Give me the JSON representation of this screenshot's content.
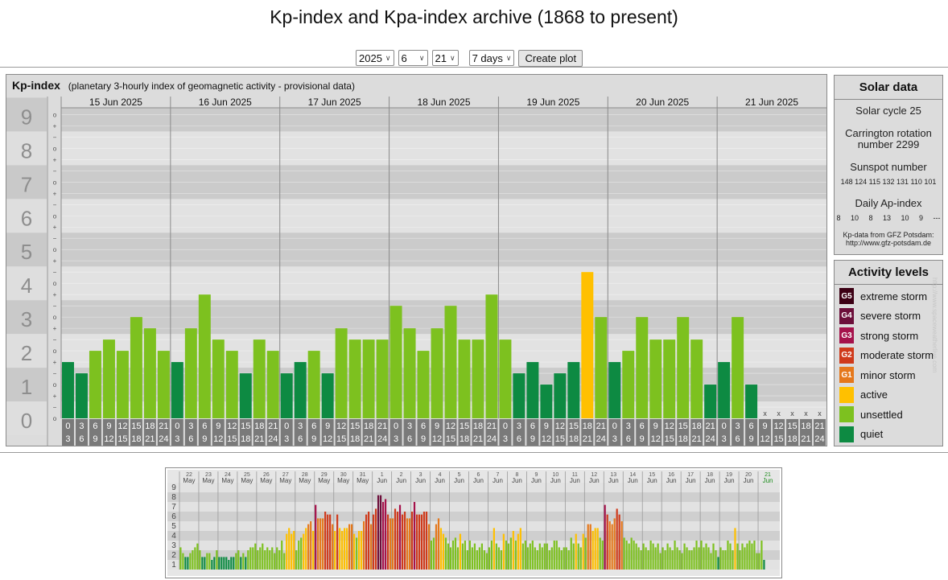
{
  "page_title": "Kp-index and Kpa-index archive (1868 to present)",
  "controls": {
    "year": "2025",
    "month": "6",
    "day": "21",
    "range": "7 days",
    "create_label": "Create plot"
  },
  "main_chart": {
    "title": "Kp-index",
    "subtitle": "(planetary 3-hourly index of geomagnetic activity - provisional data)",
    "y_ticks": [
      "0",
      "1",
      "2",
      "3",
      "4",
      "5",
      "6",
      "7",
      "8",
      "9"
    ],
    "minor_marks": [
      "o",
      "+",
      "−"
    ],
    "no_data_mark": "x"
  },
  "chart_data": [
    {
      "type": "bar",
      "title": "Kp-index",
      "ylim": [
        0,
        9
      ],
      "days": [
        "15 Jun 2025",
        "16 Jun 2025",
        "17 Jun 2025",
        "18 Jun 2025",
        "19 Jun 2025",
        "20 Jun 2025",
        "21 Jun 2025"
      ],
      "interval_start": [
        "0",
        "3",
        "6",
        "9",
        "12",
        "15",
        "18",
        "21"
      ],
      "interval_end": [
        "3",
        "6",
        "9",
        "12",
        "15",
        "18",
        "21",
        "24"
      ],
      "values": [
        1.667,
        1.333,
        2.0,
        2.333,
        2.0,
        3.0,
        2.667,
        2.0,
        1.667,
        2.667,
        3.667,
        2.333,
        2.0,
        1.333,
        2.333,
        2.0,
        1.333,
        1.667,
        2.0,
        1.333,
        2.667,
        2.333,
        2.333,
        2.333,
        3.333,
        2.667,
        2.0,
        2.667,
        3.333,
        2.333,
        2.333,
        3.667,
        2.333,
        1.333,
        1.667,
        1.0,
        1.333,
        1.667,
        4.333,
        3.0,
        1.667,
        2.0,
        3.0,
        2.333,
        2.333,
        3.0,
        2.333,
        1.0,
        1.667,
        3.0,
        1.0,
        null,
        null,
        null,
        null,
        null
      ]
    },
    {
      "type": "bar",
      "title": "",
      "ylim": [
        0,
        9
      ],
      "y_ticks": [
        "1",
        "2",
        "3",
        "4",
        "5",
        "6",
        "7",
        "8",
        "9"
      ],
      "days": [
        "22",
        "23",
        "24",
        "25",
        "26",
        "27",
        "28",
        "29",
        "30",
        "31",
        "1",
        "2",
        "3",
        "4",
        "5",
        "6",
        "7",
        "8",
        "9",
        "10",
        "11",
        "12",
        "13",
        "14",
        "15",
        "16",
        "17",
        "18",
        "19",
        "20",
        "21"
      ],
      "months": [
        "May",
        "May",
        "May",
        "May",
        "May",
        "May",
        "May",
        "May",
        "May",
        "May",
        "Jun",
        "Jun",
        "Jun",
        "Jun",
        "Jun",
        "Jun",
        "Jun",
        "Jun",
        "Jun",
        "Jun",
        "Jun",
        "Jun",
        "Jun",
        "Jun",
        "Jun",
        "Jun",
        "Jun",
        "Jun",
        "Jun",
        "Jun",
        "Jun"
      ],
      "values": [
        2.3,
        1.7,
        1.3,
        1.3,
        1.7,
        2.0,
        2.3,
        2.7,
        2.0,
        1.3,
        1.3,
        1.7,
        1.7,
        1.0,
        1.3,
        2.0,
        1.3,
        1.3,
        1.3,
        1.3,
        1.0,
        1.3,
        1.3,
        1.7,
        2.0,
        1.3,
        1.7,
        1.3,
        2.0,
        2.3,
        2.3,
        2.7,
        2.0,
        2.3,
        2.7,
        2.0,
        2.3,
        2.0,
        2.3,
        1.7,
        2.3,
        2.0,
        3.0,
        1.7,
        3.7,
        4.3,
        3.7,
        4.0,
        2.0,
        3.0,
        3.3,
        3.7,
        4.3,
        4.7,
        5.0,
        4.0,
        6.7,
        5.3,
        5.3,
        5.3,
        6.0,
        5.7,
        5.7,
        4.7,
        4.0,
        5.7,
        4.3,
        4.0,
        4.3,
        4.3,
        4.7,
        4.7,
        3.7,
        3.3,
        4.0,
        4.0,
        5.0,
        5.7,
        6.0,
        4.7,
        5.7,
        6.3,
        7.7,
        7.7,
        7.0,
        7.3,
        5.7,
        5.3,
        5.3,
        6.3,
        6.0,
        6.7,
        5.7,
        6.0,
        5.3,
        5.3,
        6.0,
        7.0,
        5.7,
        5.7,
        5.7,
        6.0,
        6.0,
        4.7,
        3.0,
        3.3,
        4.7,
        5.3,
        4.3,
        3.7,
        3.3,
        2.7,
        2.3,
        3.0,
        3.3,
        2.3,
        3.7,
        2.7,
        3.0,
        2.0,
        3.0,
        2.3,
        2.7,
        2.0,
        2.3,
        2.7,
        2.0,
        1.7,
        2.3,
        3.0,
        4.3,
        2.7,
        2.3,
        2.0,
        3.7,
        3.0,
        2.7,
        3.3,
        4.0,
        3.0,
        3.7,
        4.3,
        2.7,
        3.0,
        2.3,
        2.7,
        3.0,
        2.3,
        2.0,
        2.7,
        2.3,
        2.7,
        2.7,
        2.0,
        2.3,
        3.0,
        3.0,
        2.3,
        2.0,
        2.3,
        2.3,
        2.0,
        3.3,
        2.7,
        3.7,
        2.7,
        2.3,
        3.7,
        3.3,
        4.7,
        4.7,
        4.0,
        4.3,
        4.3,
        3.3,
        3.0,
        6.7,
        5.7,
        5.0,
        4.7,
        5.3,
        6.3,
        5.7,
        5.0,
        3.3,
        3.0,
        2.7,
        3.3,
        3.0,
        2.7,
        2.3,
        2.0,
        2.7,
        2.3,
        2.0,
        3.0,
        2.7,
        2.3,
        2.7,
        1.7,
        2.3,
        2.0,
        2.7,
        2.3,
        2.0,
        3.0,
        2.3,
        2.0,
        1.7,
        2.7,
        2.3,
        2.0,
        2.0,
        2.3,
        3.0,
        2.3,
        3.0,
        2.3,
        2.7,
        2.3,
        1.7,
        2.7,
        2.0,
        1.3,
        2.3,
        2.0,
        2.0,
        3.0,
        2.7,
        2.0,
        4.3,
        2.7,
        2.0,
        2.7,
        2.3,
        2.7,
        3.0,
        2.7,
        3.0,
        1.7,
        1.7,
        3.0,
        1.0,
        null,
        null,
        null,
        null,
        null
      ]
    }
  ],
  "solar": {
    "title": "Solar data",
    "cycle": "Solar cycle 25",
    "carrington_1": "Carrington rotation",
    "carrington_2": "number 2299",
    "sunspot_label": "Sunspot number",
    "sunspot_values": "148 124 115 132 131 110 101",
    "ap_label": "Daily Ap-index",
    "ap_values": "8     10     8     13     10     9     ---",
    "source_1": "Kp-data from GFZ Potsdam:",
    "source_2": "http://www.gfz-potsdam.de"
  },
  "activity": {
    "title": "Activity levels",
    "levels": [
      {
        "code": "G5",
        "label": "extreme storm",
        "color": "#3c0014"
      },
      {
        "code": "G4",
        "label": "severe storm",
        "color": "#6c0f3a"
      },
      {
        "code": "G3",
        "label": "strong storm",
        "color": "#a5124b"
      },
      {
        "code": "G2",
        "label": "moderate storm",
        "color": "#cf3a1b"
      },
      {
        "code": "G1",
        "label": "minor storm",
        "color": "#e5781c"
      },
      {
        "code": "",
        "label": "active",
        "color": "#ffc000"
      },
      {
        "code": "",
        "label": "unsettled",
        "color": "#7dc11f"
      },
      {
        "code": "",
        "label": "quiet",
        "color": "#0d8a42"
      }
    ]
  },
  "side_credit": "http://www.spaceweatherlive.com"
}
